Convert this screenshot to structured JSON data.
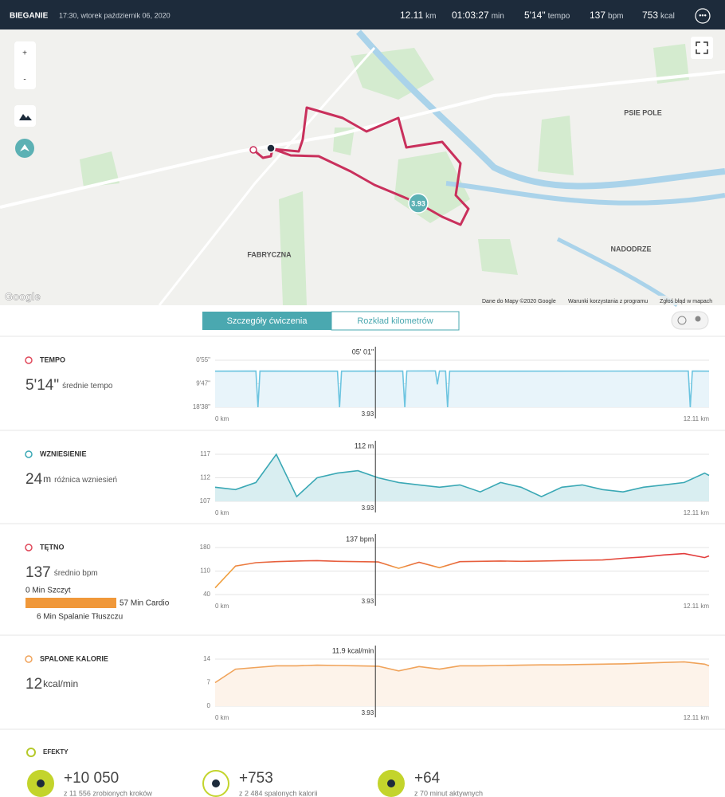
{
  "header": {
    "title": "BIEGANIE",
    "datetime": "17:30, wtorek październik 06, 2020",
    "stats": [
      {
        "value": "12.11",
        "unit": "km"
      },
      {
        "value": "01:03:27",
        "unit": "min"
      },
      {
        "value": "5'14\"",
        "unit": "tempo"
      },
      {
        "value": "137",
        "unit": "bpm"
      },
      {
        "value": "753",
        "unit": "kcal"
      }
    ]
  },
  "map": {
    "zoom_in": "+",
    "zoom_out": "-",
    "labels": [
      "PSIE POLE",
      "FABRYCZNA",
      "NADODRZE"
    ],
    "marker": "3.93",
    "logo": "Google",
    "attribution": [
      "Dane do Mapy ©2020 Google",
      "Warunki korzystania z programu",
      "Zgłoś błąd w mapach"
    ]
  },
  "tabs": [
    "Szczegóły ćwiczenia",
    "Rozkład kilometrów"
  ],
  "panels": [
    {
      "title": "TEMPO",
      "value": "5'14\"",
      "unit": "",
      "caption": "średnie tempo",
      "chart": {
        "type": "line",
        "color": "#6cc4e0",
        "fill": "#e8f4fa",
        "y_inverted": true,
        "ylim": [
          55,
          1118
        ],
        "yticks": [
          {
            "value": 55,
            "label": "0'55\""
          },
          {
            "value": 587,
            "label": "9'47\""
          },
          {
            "value": 1118,
            "label": "18'38\""
          }
        ],
        "xlim": [
          0,
          12.11
        ],
        "xticks": [
          {
            "value": 0,
            "label": "0 km"
          },
          {
            "value": 12.11,
            "label": "12.11 km"
          }
        ],
        "cursor": {
          "x": 3.93,
          "label": "05' 01\""
        },
        "x": [
          0,
          1.0,
          1.05,
          1.1,
          3.0,
          3.05,
          3.1,
          4.6,
          4.65,
          4.7,
          5.4,
          5.45,
          5.5,
          5.65,
          5.7,
          5.75,
          11.6,
          11.65,
          11.7,
          12.11
        ],
        "values": [
          301,
          300,
          1118,
          300,
          302,
          1118,
          301,
          300,
          1118,
          299,
          297,
          600,
          298,
          300,
          1118,
          301,
          300,
          1118,
          300,
          301
        ]
      }
    },
    {
      "title": "WZNIESIENIE",
      "value": "24",
      "unit": "m",
      "caption": "różnica wzniesień",
      "chart": {
        "type": "line",
        "color": "#3aa8b5",
        "fill": "#d9eef1",
        "ylim": [
          107,
          117
        ],
        "yticks": [
          107,
          112,
          117
        ],
        "xlim": [
          0,
          12.11
        ],
        "xticks": [
          {
            "value": 0,
            "label": "0 km"
          },
          {
            "value": 12.11,
            "label": "12.11 km"
          }
        ],
        "cursor": {
          "x": 3.93,
          "label": "112 m"
        },
        "x": [
          0,
          0.5,
          1,
          1.5,
          2,
          2.5,
          3,
          3.5,
          4,
          4.5,
          5,
          5.5,
          6,
          6.5,
          7,
          7.5,
          8,
          8.5,
          9,
          9.5,
          10,
          10.5,
          11,
          11.5,
          12,
          12.11
        ],
        "values": [
          110,
          109.5,
          111,
          117,
          108,
          112,
          113,
          113.5,
          112,
          111,
          110.5,
          110,
          110.5,
          109,
          111,
          110,
          108,
          110,
          110.5,
          109.5,
          109,
          110,
          110.5,
          111,
          113,
          112.5
        ]
      }
    },
    {
      "title": "TĘTNO",
      "value": "137",
      "unit": "",
      "caption": "średnio bpm",
      "zones": [
        "0 Min Szczyt",
        "57 Min Cardio",
        "6 Min Spalanie Tłuszczu"
      ],
      "chart": {
        "type": "line",
        "color": "#e4483a",
        "fill": "none",
        "ylim": [
          40,
          180
        ],
        "yticks": [
          40,
          110,
          180
        ],
        "xlim": [
          0,
          12.11
        ],
        "xticks": [
          {
            "value": 0,
            "label": "0 km"
          },
          {
            "value": 12.11,
            "label": "12.11 km"
          }
        ],
        "cursor": {
          "x": 3.93,
          "label": "137 bpm"
        },
        "x": [
          0,
          0.5,
          1,
          1.5,
          2,
          2.5,
          3,
          3.5,
          4,
          4.5,
          5,
          5.5,
          6,
          6.5,
          7,
          7.5,
          8,
          8.5,
          9,
          9.5,
          10,
          10.5,
          11,
          11.5,
          12,
          12.11
        ],
        "values": [
          60,
          125,
          135,
          138,
          140,
          141,
          139,
          138,
          137,
          118,
          136,
          120,
          138,
          139,
          140,
          139,
          140,
          141,
          142,
          143,
          148,
          152,
          158,
          162,
          150,
          155
        ]
      }
    },
    {
      "title": "SPALONE KALORIE",
      "value": "12",
      "unit": "kcal/min",
      "caption": "",
      "chart": {
        "type": "line",
        "color": "#f0a35a",
        "fill": "#fdf3ea",
        "ylim": [
          0,
          14
        ],
        "yticks": [
          0,
          7,
          14
        ],
        "xlim": [
          0,
          12.11
        ],
        "xticks": [
          {
            "value": 0,
            "label": "0 km"
          },
          {
            "value": 12.11,
            "label": "12.11 km"
          }
        ],
        "cursor": {
          "x": 3.93,
          "label": "11.9 kcal/min"
        },
        "x": [
          0,
          0.5,
          1,
          1.5,
          2,
          2.5,
          3,
          3.5,
          4,
          4.5,
          5,
          5.5,
          6,
          6.5,
          7,
          7.5,
          8,
          8.5,
          9,
          9.5,
          10,
          10.5,
          11,
          11.5,
          12,
          12.11
        ],
        "values": [
          7,
          11,
          11.5,
          12,
          12,
          12.2,
          12.1,
          12,
          11.9,
          10.5,
          11.8,
          11,
          12,
          12,
          12.1,
          12.2,
          12.3,
          12.3,
          12.4,
          12.5,
          12.6,
          12.8,
          13,
          13.2,
          12.5,
          12
        ]
      }
    }
  ],
  "effects": {
    "title": "EFEKTY",
    "items": [
      {
        "value": "+10 050",
        "caption": "z 11 556 zrobionych kroków"
      },
      {
        "value": "+753",
        "caption": "z 2 484 spalonych kalorii"
      },
      {
        "value": "+64",
        "caption": "z 70 minut aktywnych"
      }
    ]
  }
}
